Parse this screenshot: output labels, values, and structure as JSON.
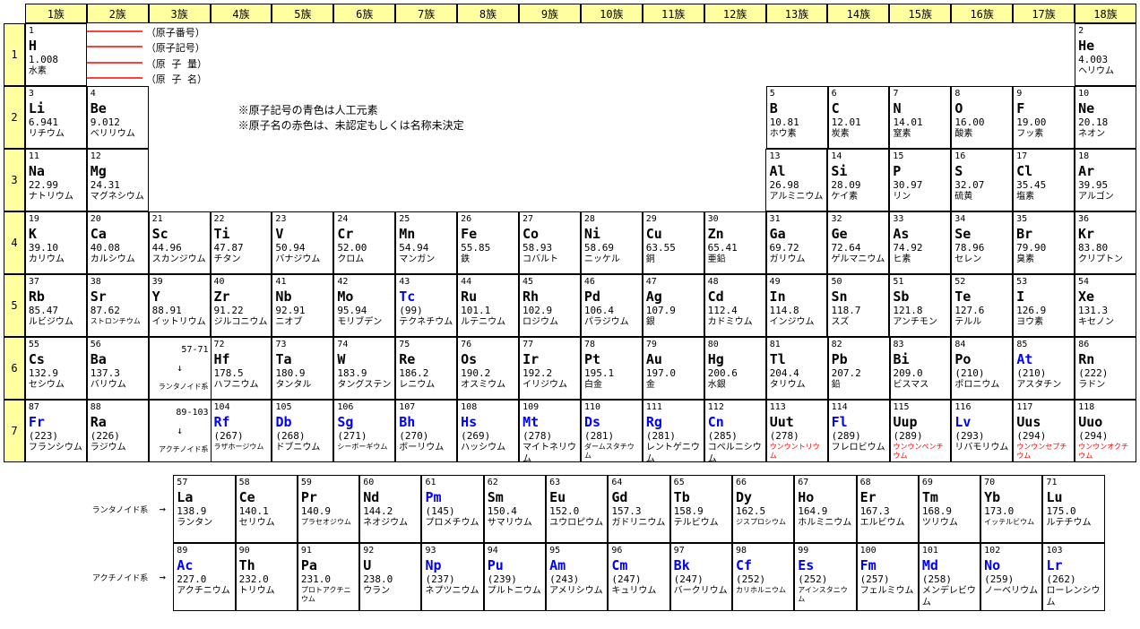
{
  "group_suffix": "族",
  "legend": {
    "atomic_number": "（原子番号）",
    "atomic_symbol": "（原子記号）",
    "atomic_weight": "（原 子 量）",
    "atomic_name": "（原 子 名）"
  },
  "notes": [
    "※原子記号の青色は人工元素",
    "※原子名の赤色は、未認定もしくは名称未決定"
  ],
  "lan_label": "ランタノイド系",
  "act_label": "アクチノイド系",
  "arrow": "→",
  "down": "↓",
  "lan_ptr": {
    "range": "57-71",
    "txt": "ランタノイド系"
  },
  "act_ptr": {
    "range": "89-103",
    "txt": "アクチノイド系"
  },
  "rows": [
    1,
    2,
    3,
    4,
    5,
    6,
    7
  ],
  "el": {
    "1": {
      "n": "1",
      "s": "H",
      "m": "1.008",
      "na": "水素"
    },
    "2": {
      "n": "2",
      "s": "He",
      "m": "4.003",
      "na": "ヘリウム"
    },
    "3": {
      "n": "3",
      "s": "Li",
      "m": "6.941",
      "na": "リチウム"
    },
    "4": {
      "n": "4",
      "s": "Be",
      "m": "9.012",
      "na": "ベリリウム"
    },
    "5": {
      "n": "5",
      "s": "B",
      "m": "10.81",
      "na": "ホウ素"
    },
    "6": {
      "n": "6",
      "s": "C",
      "m": "12.01",
      "na": "炭素"
    },
    "7": {
      "n": "7",
      "s": "N",
      "m": "14.01",
      "na": "窒素"
    },
    "8": {
      "n": "8",
      "s": "O",
      "m": "16.00",
      "na": "酸素"
    },
    "9": {
      "n": "9",
      "s": "F",
      "m": "19.00",
      "na": "フッ素"
    },
    "10": {
      "n": "10",
      "s": "Ne",
      "m": "20.18",
      "na": "ネオン"
    },
    "11": {
      "n": "11",
      "s": "Na",
      "m": "22.99",
      "na": "ナトリウム"
    },
    "12": {
      "n": "12",
      "s": "Mg",
      "m": "24.31",
      "na": "マグネシウム"
    },
    "13": {
      "n": "13",
      "s": "Al",
      "m": "26.98",
      "na": "アルミニウム"
    },
    "14": {
      "n": "14",
      "s": "Si",
      "m": "28.09",
      "na": "ケイ素"
    },
    "15": {
      "n": "15",
      "s": "P",
      "m": "30.97",
      "na": "リン"
    },
    "16": {
      "n": "16",
      "s": "S",
      "m": "32.07",
      "na": "硫黄"
    },
    "17": {
      "n": "17",
      "s": "Cl",
      "m": "35.45",
      "na": "塩素"
    },
    "18": {
      "n": "18",
      "s": "Ar",
      "m": "39.95",
      "na": "アルゴン"
    },
    "19": {
      "n": "19",
      "s": "K",
      "m": "39.10",
      "na": "カリウム"
    },
    "20": {
      "n": "20",
      "s": "Ca",
      "m": "40.08",
      "na": "カルシウム"
    },
    "21": {
      "n": "21",
      "s": "Sc",
      "m": "44.96",
      "na": "スカンジウム"
    },
    "22": {
      "n": "22",
      "s": "Ti",
      "m": "47.87",
      "na": "チタン"
    },
    "23": {
      "n": "23",
      "s": "V",
      "m": "50.94",
      "na": "バナジウム"
    },
    "24": {
      "n": "24",
      "s": "Cr",
      "m": "52.00",
      "na": "クロム"
    },
    "25": {
      "n": "25",
      "s": "Mn",
      "m": "54.94",
      "na": "マンガン"
    },
    "26": {
      "n": "26",
      "s": "Fe",
      "m": "55.85",
      "na": "鉄"
    },
    "27": {
      "n": "27",
      "s": "Co",
      "m": "58.93",
      "na": "コバルト"
    },
    "28": {
      "n": "28",
      "s": "Ni",
      "m": "58.69",
      "na": "ニッケル"
    },
    "29": {
      "n": "29",
      "s": "Cu",
      "m": "63.55",
      "na": "銅"
    },
    "30": {
      "n": "30",
      "s": "Zn",
      "m": "65.41",
      "na": "亜鉛"
    },
    "31": {
      "n": "31",
      "s": "Ga",
      "m": "69.72",
      "na": "ガリウム"
    },
    "32": {
      "n": "32",
      "s": "Ge",
      "m": "72.64",
      "na": "ゲルマニウム"
    },
    "33": {
      "n": "33",
      "s": "As",
      "m": "74.92",
      "na": "ヒ素"
    },
    "34": {
      "n": "34",
      "s": "Se",
      "m": "78.96",
      "na": "セレン"
    },
    "35": {
      "n": "35",
      "s": "Br",
      "m": "79.90",
      "na": "臭素"
    },
    "36": {
      "n": "36",
      "s": "Kr",
      "m": "83.80",
      "na": "クリプトン"
    },
    "37": {
      "n": "37",
      "s": "Rb",
      "m": "85.47",
      "na": "ルビジウム"
    },
    "38": {
      "n": "38",
      "s": "Sr",
      "m": "87.62",
      "na": "ストロンチウム"
    },
    "39": {
      "n": "39",
      "s": "Y",
      "m": "88.91",
      "na": "イットリウム"
    },
    "40": {
      "n": "40",
      "s": "Zr",
      "m": "91.22",
      "na": "ジルコニウム"
    },
    "41": {
      "n": "41",
      "s": "Nb",
      "m": "92.91",
      "na": "ニオブ"
    },
    "42": {
      "n": "42",
      "s": "Mo",
      "m": "95.94",
      "na": "モリブデン"
    },
    "43": {
      "n": "43",
      "s": "Tc",
      "m": "(99)",
      "na": "テクネチウム",
      "blue": true
    },
    "44": {
      "n": "44",
      "s": "Ru",
      "m": "101.1",
      "na": "ルテニウム"
    },
    "45": {
      "n": "45",
      "s": "Rh",
      "m": "102.9",
      "na": "ロジウム"
    },
    "46": {
      "n": "46",
      "s": "Pd",
      "m": "106.4",
      "na": "パラジウム"
    },
    "47": {
      "n": "47",
      "s": "Ag",
      "m": "107.9",
      "na": "銀"
    },
    "48": {
      "n": "48",
      "s": "Cd",
      "m": "112.4",
      "na": "カドミウム"
    },
    "49": {
      "n": "49",
      "s": "In",
      "m": "114.8",
      "na": "インジウム"
    },
    "50": {
      "n": "50",
      "s": "Sn",
      "m": "118.7",
      "na": "スズ"
    },
    "51": {
      "n": "51",
      "s": "Sb",
      "m": "121.8",
      "na": "アンチモン"
    },
    "52": {
      "n": "52",
      "s": "Te",
      "m": "127.6",
      "na": "テルル"
    },
    "53": {
      "n": "53",
      "s": "I",
      "m": "126.9",
      "na": "ヨウ素"
    },
    "54": {
      "n": "54",
      "s": "Xe",
      "m": "131.3",
      "na": "キセノン"
    },
    "55": {
      "n": "55",
      "s": "Cs",
      "m": "132.9",
      "na": "セシウム"
    },
    "56": {
      "n": "56",
      "s": "Ba",
      "m": "137.3",
      "na": "バリウム"
    },
    "72": {
      "n": "72",
      "s": "Hf",
      "m": "178.5",
      "na": "ハフニウム"
    },
    "73": {
      "n": "73",
      "s": "Ta",
      "m": "180.9",
      "na": "タンタル"
    },
    "74": {
      "n": "74",
      "s": "W",
      "m": "183.9",
      "na": "タングステン"
    },
    "75": {
      "n": "75",
      "s": "Re",
      "m": "186.2",
      "na": "レニウム"
    },
    "76": {
      "n": "76",
      "s": "Os",
      "m": "190.2",
      "na": "オスミウム"
    },
    "77": {
      "n": "77",
      "s": "Ir",
      "m": "192.2",
      "na": "イリジウム"
    },
    "78": {
      "n": "78",
      "s": "Pt",
      "m": "195.1",
      "na": "白金"
    },
    "79": {
      "n": "79",
      "s": "Au",
      "m": "197.0",
      "na": "金"
    },
    "80": {
      "n": "80",
      "s": "Hg",
      "m": "200.6",
      "na": "水銀"
    },
    "81": {
      "n": "81",
      "s": "Tl",
      "m": "204.4",
      "na": "タリウム"
    },
    "82": {
      "n": "82",
      "s": "Pb",
      "m": "207.2",
      "na": "鉛"
    },
    "83": {
      "n": "83",
      "s": "Bi",
      "m": "209.0",
      "na": "ビスマス"
    },
    "84": {
      "n": "84",
      "s": "Po",
      "m": "(210)",
      "na": "ポロニウム"
    },
    "85": {
      "n": "85",
      "s": "At",
      "m": "(210)",
      "na": "アスタチン",
      "blue": true
    },
    "86": {
      "n": "86",
      "s": "Rn",
      "m": "(222)",
      "na": "ラドン"
    },
    "87": {
      "n": "87",
      "s": "Fr",
      "m": "(223)",
      "na": "フランシウム",
      "blue": true
    },
    "88": {
      "n": "88",
      "s": "Ra",
      "m": "(226)",
      "na": "ラジウム"
    },
    "104": {
      "n": "104",
      "s": "Rf",
      "m": "(267)",
      "na": "ラザホージウム",
      "blue": true
    },
    "105": {
      "n": "105",
      "s": "Db",
      "m": "(268)",
      "na": "ドブニウム",
      "blue": true
    },
    "106": {
      "n": "106",
      "s": "Sg",
      "m": "(271)",
      "na": "シーボーギウム",
      "blue": true
    },
    "107": {
      "n": "107",
      "s": "Bh",
      "m": "(270)",
      "na": "ボーリウム",
      "blue": true
    },
    "108": {
      "n": "108",
      "s": "Hs",
      "m": "(269)",
      "na": "ハッシウム",
      "blue": true
    },
    "109": {
      "n": "109",
      "s": "Mt",
      "m": "(278)",
      "na": "マイトネリウム",
      "blue": true
    },
    "110": {
      "n": "110",
      "s": "Ds",
      "m": "(281)",
      "na": "ダームスタチウム",
      "blue": true
    },
    "111": {
      "n": "111",
      "s": "Rg",
      "m": "(281)",
      "na": "レントゲニウム",
      "blue": true
    },
    "112": {
      "n": "112",
      "s": "Cn",
      "m": "(285)",
      "na": "コペルニシウム",
      "blue": true
    },
    "113": {
      "n": "113",
      "s": "Uut",
      "m": "(278)",
      "na": "ウンウントリウム",
      "red": true
    },
    "114": {
      "n": "114",
      "s": "Fl",
      "m": "(289)",
      "na": "フレロビウム",
      "blue": true
    },
    "115": {
      "n": "115",
      "s": "Uup",
      "m": "(289)",
      "na": "ウンウンペンチウム",
      "red": true
    },
    "116": {
      "n": "116",
      "s": "Lv",
      "m": "(293)",
      "na": "リバモリウム",
      "blue": true
    },
    "117": {
      "n": "117",
      "s": "Uus",
      "m": "(294)",
      "na": "ウンウンセプチウム",
      "red": true
    },
    "118": {
      "n": "118",
      "s": "Uuo",
      "m": "(294)",
      "na": "ウンウンオクチウム",
      "red": true
    },
    "57": {
      "n": "57",
      "s": "La",
      "m": "138.9",
      "na": "ランタン"
    },
    "58": {
      "n": "58",
      "s": "Ce",
      "m": "140.1",
      "na": "セリウム"
    },
    "59": {
      "n": "59",
      "s": "Pr",
      "m": "140.9",
      "na": "プラセオジウム"
    },
    "60": {
      "n": "60",
      "s": "Nd",
      "m": "144.2",
      "na": "ネオジウム"
    },
    "61": {
      "n": "61",
      "s": "Pm",
      "m": "(145)",
      "na": "プロメチウム",
      "blue": true
    },
    "62": {
      "n": "62",
      "s": "Sm",
      "m": "150.4",
      "na": "サマリウム"
    },
    "63": {
      "n": "63",
      "s": "Eu",
      "m": "152.0",
      "na": "ユウロピウム"
    },
    "64": {
      "n": "64",
      "s": "Gd",
      "m": "157.3",
      "na": "ガドリニウム"
    },
    "65": {
      "n": "65",
      "s": "Tb",
      "m": "158.9",
      "na": "テルビウム"
    },
    "66": {
      "n": "66",
      "s": "Dy",
      "m": "162.5",
      "na": "ジスプロシウム"
    },
    "67": {
      "n": "67",
      "s": "Ho",
      "m": "164.9",
      "na": "ホルミニウム"
    },
    "68": {
      "n": "68",
      "s": "Er",
      "m": "167.3",
      "na": "エルビウム"
    },
    "69": {
      "n": "69",
      "s": "Tm",
      "m": "168.9",
      "na": "ツリウム"
    },
    "70": {
      "n": "70",
      "s": "Yb",
      "m": "173.0",
      "na": "イッテルビウム"
    },
    "71": {
      "n": "71",
      "s": "Lu",
      "m": "175.0",
      "na": "ルテチウム"
    },
    "89": {
      "n": "89",
      "s": "Ac",
      "m": "227.0",
      "na": "アクチニウム",
      "blue": true
    },
    "90": {
      "n": "90",
      "s": "Th",
      "m": "232.0",
      "na": "トリウム"
    },
    "91": {
      "n": "91",
      "s": "Pa",
      "m": "231.0",
      "na": "プロトアクチニウム"
    },
    "92": {
      "n": "92",
      "s": "U",
      "m": "238.0",
      "na": "ウラン"
    },
    "93": {
      "n": "93",
      "s": "Np",
      "m": "(237)",
      "na": "ネプツニウム",
      "blue": true
    },
    "94": {
      "n": "94",
      "s": "Pu",
      "m": "(239)",
      "na": "プルトニウム",
      "blue": true
    },
    "95": {
      "n": "95",
      "s": "Am",
      "m": "(243)",
      "na": "アメリシウム",
      "blue": true
    },
    "96": {
      "n": "96",
      "s": "Cm",
      "m": "(247)",
      "na": "キュリウム",
      "blue": true
    },
    "97": {
      "n": "97",
      "s": "Bk",
      "m": "(247)",
      "na": "バークリウム",
      "blue": true
    },
    "98": {
      "n": "98",
      "s": "Cf",
      "m": "(252)",
      "na": "カリホルニウム",
      "blue": true
    },
    "99": {
      "n": "99",
      "s": "Es",
      "m": "(252)",
      "na": "アインスタニウム",
      "blue": true
    },
    "100": {
      "n": "100",
      "s": "Fm",
      "m": "(257)",
      "na": "フェルミウム",
      "blue": true
    },
    "101": {
      "n": "101",
      "s": "Md",
      "m": "(258)",
      "na": "メンデレビウム",
      "blue": true
    },
    "102": {
      "n": "102",
      "s": "No",
      "m": "(259)",
      "na": "ノーベリウム",
      "blue": true
    },
    "103": {
      "n": "103",
      "s": "Lr",
      "m": "(262)",
      "na": "ローレンシウム",
      "blue": true
    }
  },
  "layout": {
    "1": [
      1,
      "legend",
      "sp",
      "sp",
      "sp",
      "sp",
      "sp",
      "sp",
      "sp",
      "sp",
      "sp",
      "sp",
      "sp",
      "sp",
      "sp",
      "sp",
      "sp",
      2
    ],
    "2": [
      3,
      4,
      "notes",
      "",
      "",
      "",
      "",
      "",
      "",
      "",
      "",
      "",
      5,
      6,
      7,
      8,
      9,
      10
    ],
    "3": [
      11,
      12,
      "sp",
      "sp",
      "sp",
      "sp",
      "sp",
      "sp",
      "sp",
      "sp",
      "sp",
      "sp",
      13,
      14,
      15,
      16,
      17,
      18
    ],
    "4": [
      19,
      20,
      21,
      22,
      23,
      24,
      25,
      26,
      27,
      28,
      29,
      30,
      31,
      32,
      33,
      34,
      35,
      36
    ],
    "5": [
      37,
      38,
      39,
      40,
      41,
      42,
      43,
      44,
      45,
      46,
      47,
      48,
      49,
      50,
      51,
      52,
      53,
      54
    ],
    "6": [
      55,
      56,
      "lan",
      72,
      73,
      74,
      75,
      76,
      77,
      78,
      79,
      80,
      81,
      82,
      83,
      84,
      85,
      86
    ],
    "7": [
      87,
      88,
      "act",
      104,
      105,
      106,
      107,
      108,
      109,
      110,
      111,
      112,
      113,
      114,
      115,
      116,
      117,
      118
    ],
    "L": [
      57,
      58,
      59,
      60,
      61,
      62,
      63,
      64,
      65,
      66,
      67,
      68,
      69,
      70,
      71
    ],
    "A": [
      89,
      90,
      91,
      92,
      93,
      94,
      95,
      96,
      97,
      98,
      99,
      100,
      101,
      102,
      103
    ]
  },
  "small_name": [
    38,
    59,
    91,
    104,
    106,
    110,
    66,
    70,
    98,
    99
  ]
}
